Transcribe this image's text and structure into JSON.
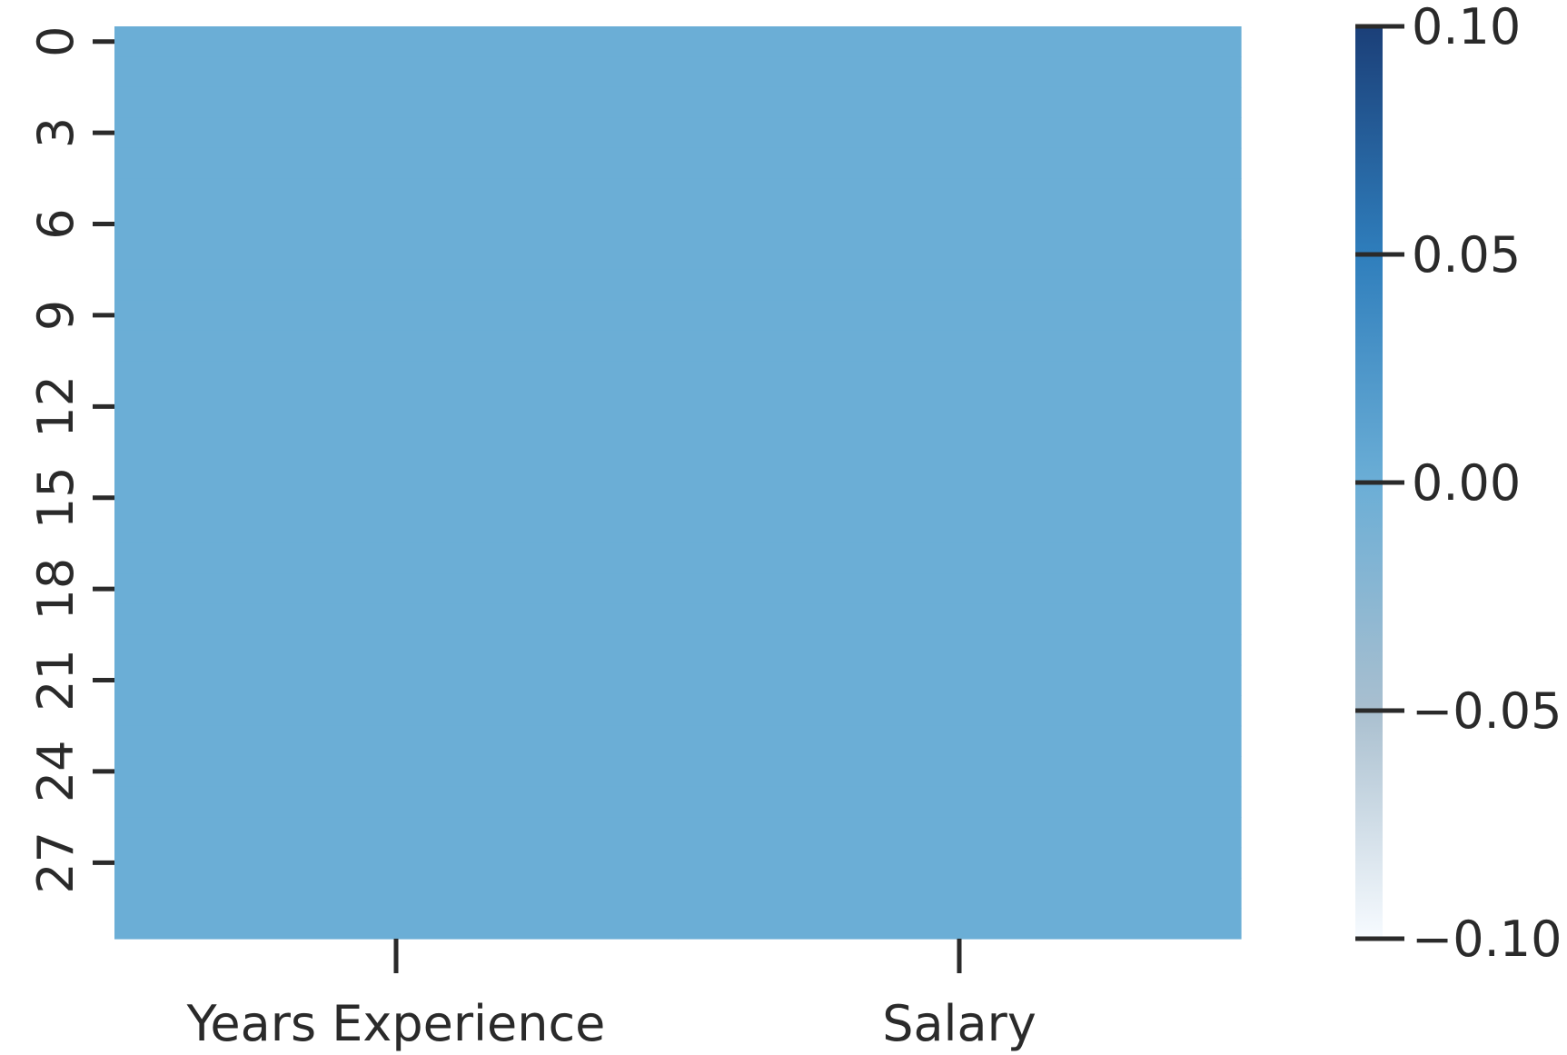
{
  "chart_data": {
    "type": "heatmap",
    "title": "",
    "xlabel": "",
    "ylabel": "",
    "columns": [
      "Years Experience",
      "Salary"
    ],
    "row_tick_labels": [
      "0",
      "3",
      "6",
      "9",
      "12",
      "15",
      "18",
      "21",
      "24",
      "27"
    ],
    "row_count": 30,
    "values_description_note_free": null,
    "values": [
      [
        0,
        0
      ],
      [
        0,
        0
      ],
      [
        0,
        0
      ],
      [
        0,
        0
      ],
      [
        0,
        0
      ],
      [
        0,
        0
      ],
      [
        0,
        0
      ],
      [
        0,
        0
      ],
      [
        0,
        0
      ],
      [
        0,
        0
      ],
      [
        0,
        0
      ],
      [
        0,
        0
      ],
      [
        0,
        0
      ],
      [
        0,
        0
      ],
      [
        0,
        0
      ],
      [
        0,
        0
      ],
      [
        0,
        0
      ],
      [
        0,
        0
      ],
      [
        0,
        0
      ],
      [
        0,
        0
      ],
      [
        0,
        0
      ],
      [
        0,
        0
      ],
      [
        0,
        0
      ],
      [
        0,
        0
      ],
      [
        0,
        0
      ],
      [
        0,
        0
      ],
      [
        0,
        0
      ],
      [
        0,
        0
      ],
      [
        0,
        0
      ],
      [
        0,
        0
      ]
    ],
    "colorbar": {
      "vmin": -0.1,
      "vmax": 0.1,
      "ticks": [
        0.1,
        0.05,
        0.0,
        -0.05,
        -0.1
      ],
      "tick_labels": [
        "0.10",
        "0.05",
        "0.00",
        "−0.05",
        "−0.10"
      ],
      "colors": [
        "#f7fbff",
        "#a9bfcf",
        "#6baed6",
        "#2f7ebc",
        "#1b3f78"
      ]
    }
  }
}
